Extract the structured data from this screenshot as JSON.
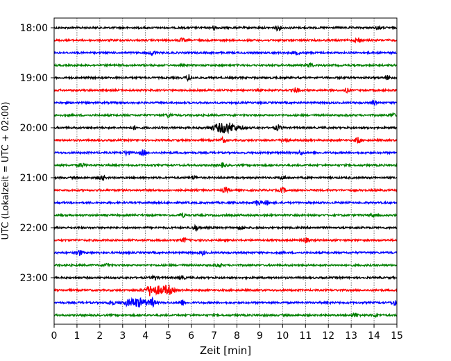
{
  "chart_data": {
    "type": "line",
    "title": "",
    "xlabel": "Zeit  [min]",
    "ylabel": "UTC (Lokalzeit = UTC + 02:00)",
    "xlim": [
      0,
      15
    ],
    "x_ticks": [
      "0",
      "1",
      "2",
      "3",
      "4",
      "5",
      "6",
      "7",
      "8",
      "9",
      "10",
      "11",
      "12",
      "13",
      "14",
      "15"
    ],
    "y_tick_labels": [
      "18:00",
      "19:00",
      "20:00",
      "21:00",
      "22:00",
      "23:00"
    ],
    "grid": "vertical dotted lines at each minute",
    "legend": "none",
    "trace_colors": [
      "#000000",
      "#ff0000",
      "#0000ff",
      "#008000"
    ],
    "rows": [
      {
        "start": "18:00",
        "color": "#000000"
      },
      {
        "start": "18:15",
        "color": "#ff0000"
      },
      {
        "start": "18:30",
        "color": "#0000ff"
      },
      {
        "start": "18:45",
        "color": "#008000"
      },
      {
        "start": "19:00",
        "color": "#000000"
      },
      {
        "start": "19:15",
        "color": "#ff0000"
      },
      {
        "start": "19:30",
        "color": "#0000ff"
      },
      {
        "start": "19:45",
        "color": "#008000"
      },
      {
        "start": "20:00",
        "color": "#000000"
      },
      {
        "start": "20:15",
        "color": "#ff0000"
      },
      {
        "start": "20:30",
        "color": "#0000ff"
      },
      {
        "start": "20:45",
        "color": "#008000"
      },
      {
        "start": "21:00",
        "color": "#000000"
      },
      {
        "start": "21:15",
        "color": "#ff0000"
      },
      {
        "start": "21:30",
        "color": "#0000ff"
      },
      {
        "start": "21:45",
        "color": "#008000"
      },
      {
        "start": "22:00",
        "color": "#000000"
      },
      {
        "start": "22:15",
        "color": "#ff0000"
      },
      {
        "start": "22:30",
        "color": "#0000ff"
      },
      {
        "start": "22:45",
        "color": "#008000"
      },
      {
        "start": "23:00",
        "color": "#000000"
      },
      {
        "start": "23:15",
        "color": "#ff0000"
      },
      {
        "start": "23:30",
        "color": "#0000ff"
      },
      {
        "start": "23:45",
        "color": "#008000"
      }
    ]
  }
}
